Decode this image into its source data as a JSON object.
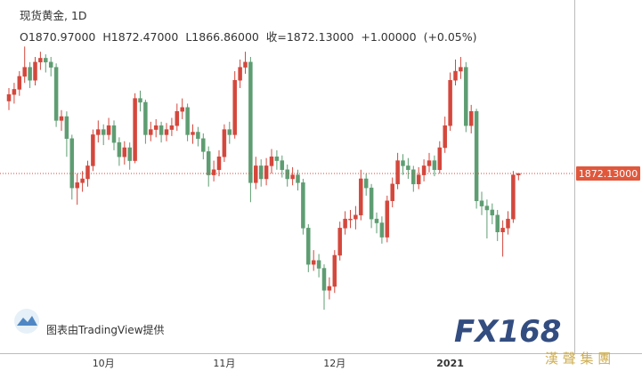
{
  "chart_data": {
    "type": "candlestick",
    "title": "现货黄金, 1D",
    "header_values": [
      "O1870.97000",
      "H1872.47000",
      "L1866.86000",
      "收=1872.13000",
      "+1.00000",
      "(+0.05%)"
    ],
    "last_price": {
      "value": 1872.13,
      "label": "1872.13000"
    },
    "attribution": "图表由TradingView提供",
    "watermark": {
      "logo": "FX168",
      "subtitle": "漢 聲 集 團"
    },
    "up_color": "#d4473c",
    "down_color": "#5e9d72",
    "ylim": [
      1733.5,
      2005.9
    ],
    "categories": [
      null,
      null,
      null,
      null,
      null,
      null,
      null,
      null,
      null,
      null,
      null,
      null,
      null,
      null,
      null,
      null,
      null,
      null,
      "10月",
      null,
      null,
      null,
      null,
      null,
      null,
      null,
      null,
      null,
      null,
      null,
      null,
      null,
      null,
      null,
      null,
      null,
      null,
      null,
      null,
      null,
      null,
      "11月",
      null,
      null,
      null,
      null,
      null,
      null,
      null,
      null,
      null,
      null,
      null,
      null,
      null,
      null,
      null,
      null,
      null,
      null,
      null,
      null,
      "12月",
      null,
      null,
      null,
      null,
      null,
      null,
      null,
      null,
      null,
      null,
      null,
      null,
      null,
      null,
      null,
      null,
      null,
      null,
      null,
      null,
      null,
      "2021",
      null,
      null,
      null,
      null,
      null,
      null,
      null,
      null,
      null,
      null,
      null,
      null,
      null
    ],
    "open": [
      1928,
      1933,
      1937,
      1947,
      1954,
      1944,
      1958,
      1961,
      1958,
      1954,
      1913,
      1916,
      1899,
      1861,
      1865,
      1868,
      1878,
      1902,
      1906,
      1902,
      1909,
      1896,
      1885,
      1892,
      1882,
      1930,
      1927,
      1902,
      1906,
      1909,
      1902,
      1906,
      1909,
      1920,
      1923,
      1902,
      1904,
      1899,
      1889,
      1871,
      1875,
      1885,
      1906,
      1902,
      1944,
      1954,
      1958,
      1865,
      1878,
      1868,
      1878,
      1885,
      1882,
      1875,
      1868,
      1871,
      1865,
      1830,
      1802,
      1805,
      1799,
      1782,
      1785,
      1809,
      1830,
      1837,
      1837,
      1840,
      1868,
      1861,
      1837,
      1834,
      1823,
      1851,
      1864,
      1882,
      1878,
      1875,
      1864,
      1871,
      1878,
      1882,
      1875,
      1892,
      1909,
      1944,
      1951,
      1954,
      1909,
      1920,
      1851,
      1847,
      1844,
      1840,
      1827,
      1830,
      1837,
      1870.97
    ],
    "high": [
      1938,
      1942,
      1951,
      1970,
      1958,
      1962,
      1966,
      1964,
      1962,
      1957,
      1921,
      1920,
      1902,
      1872,
      1874,
      1882,
      1906,
      1913,
      1910,
      1915,
      1913,
      1900,
      1897,
      1896,
      1934,
      1936,
      1929,
      1912,
      1914,
      1912,
      1911,
      1915,
      1926,
      1930,
      1926,
      1910,
      1908,
      1903,
      1893,
      1882,
      1890,
      1910,
      1912,
      1951,
      1960,
      1966,
      1962,
      1885,
      1883,
      1884,
      1891,
      1890,
      1886,
      1879,
      1877,
      1875,
      1868,
      1833,
      1813,
      1810,
      1802,
      1792,
      1813,
      1835,
      1843,
      1844,
      1847,
      1875,
      1872,
      1864,
      1842,
      1839,
      1855,
      1869,
      1888,
      1887,
      1884,
      1878,
      1877,
      1883,
      1888,
      1886,
      1897,
      1916,
      1950,
      1960,
      1962,
      1958,
      1925,
      1922,
      1858,
      1852,
      1849,
      1844,
      1836,
      1843,
      1874,
      1872.47
    ],
    "low": [
      1921,
      1926,
      1932,
      1942,
      1938,
      1940,
      1952,
      1950,
      1947,
      1908,
      1905,
      1885,
      1852,
      1848,
      1858,
      1862,
      1874,
      1896,
      1894,
      1898,
      1890,
      1878,
      1879,
      1875,
      1880,
      1920,
      1895,
      1897,
      1900,
      1896,
      1897,
      1901,
      1905,
      1914,
      1897,
      1895,
      1893,
      1883,
      1862,
      1866,
      1870,
      1881,
      1895,
      1899,
      1938,
      1949,
      1850,
      1860,
      1862,
      1863,
      1872,
      1875,
      1869,
      1862,
      1863,
      1859,
      1825,
      1796,
      1797,
      1792,
      1767,
      1775,
      1780,
      1805,
      1825,
      1830,
      1829,
      1836,
      1855,
      1830,
      1826,
      1818,
      1819,
      1846,
      1860,
      1871,
      1868,
      1858,
      1860,
      1866,
      1873,
      1870,
      1872,
      1888,
      1905,
      1940,
      1945,
      1904,
      1903,
      1845,
      1840,
      1822,
      1833,
      1820,
      1808,
      1825,
      1834,
      1866.86
    ],
    "close": [
      1933,
      1937,
      1947,
      1954,
      1944,
      1958,
      1961,
      1958,
      1954,
      1913,
      1916,
      1899,
      1861,
      1865,
      1868,
      1878,
      1902,
      1906,
      1902,
      1909,
      1896,
      1885,
      1892,
      1882,
      1930,
      1927,
      1902,
      1906,
      1909,
      1902,
      1906,
      1909,
      1920,
      1923,
      1902,
      1904,
      1899,
      1889,
      1871,
      1875,
      1885,
      1906,
      1902,
      1944,
      1954,
      1958,
      1865,
      1878,
      1868,
      1878,
      1885,
      1882,
      1875,
      1868,
      1871,
      1865,
      1830,
      1802,
      1805,
      1799,
      1782,
      1785,
      1809,
      1830,
      1837,
      1837,
      1840,
      1868,
      1861,
      1837,
      1834,
      1823,
      1851,
      1864,
      1882,
      1878,
      1875,
      1864,
      1871,
      1878,
      1882,
      1875,
      1892,
      1909,
      1944,
      1951,
      1954,
      1909,
      1920,
      1851,
      1847,
      1844,
      1840,
      1827,
      1830,
      1837,
      1871,
      1872.13
    ]
  }
}
